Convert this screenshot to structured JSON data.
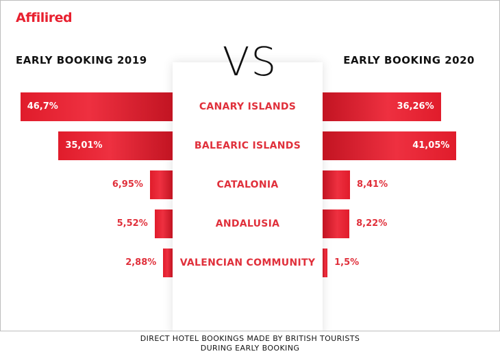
{
  "brand": "Affilired",
  "vs_label": "VS",
  "caption_line1": "DIRECT HOTEL BOOKINGS MADE BY BRITISH TOURISTS",
  "caption_line2": "DURING EARLY BOOKING",
  "colors": {
    "bar": "#e8202f",
    "text_accent": "#e0303b"
  },
  "chart_data": {
    "type": "bar",
    "orientation": "horizontal-butterfly",
    "categories": [
      "CANARY ISLANDS",
      "BALEARIC ISLANDS",
      "CATALONIA",
      "ANDALUSIA",
      "VALENCIAN COMMUNITY"
    ],
    "series": [
      {
        "name": "EARLY BOOKING 2019",
        "values": [
          46.7,
          35.01,
          6.95,
          5.52,
          2.88
        ],
        "labels": [
          "46,7%",
          "35,01%",
          "6,95%",
          "5,52%",
          "2,88%"
        ]
      },
      {
        "name": "EARLY BOOKING 2020",
        "values": [
          36.26,
          41.05,
          8.41,
          8.22,
          1.5
        ],
        "labels": [
          "36,26%",
          "41,05%",
          "8,41%",
          "8,22%",
          "1,5%"
        ]
      }
    ],
    "grid": false,
    "legend": "top"
  }
}
